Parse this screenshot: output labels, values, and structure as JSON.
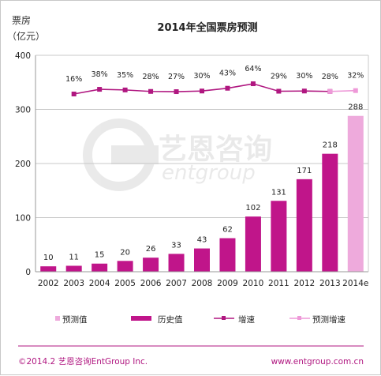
{
  "chart_data": {
    "type": "bar",
    "title": "2014年全国票房预测",
    "ylabel_line1": "票房",
    "ylabel_line2": "（亿元）",
    "ylim": [
      0,
      400
    ],
    "yticks": [
      0,
      100,
      200,
      300,
      400
    ],
    "grid": true,
    "legend_position": "bottom",
    "categories": [
      "2002",
      "2003",
      "2004",
      "2005",
      "2006",
      "2007",
      "2008",
      "2009",
      "2010",
      "2011",
      "2012",
      "2013",
      "2014e"
    ],
    "series": [
      {
        "name": "历史值",
        "type": "bar",
        "color": "#c0158a",
        "values": [
          10,
          11,
          15,
          20,
          26,
          33,
          43,
          62,
          102,
          131,
          171,
          218,
          null
        ]
      },
      {
        "name": "预测值",
        "type": "bar",
        "color": "#eeaadc",
        "values": [
          null,
          null,
          null,
          null,
          null,
          null,
          null,
          null,
          null,
          null,
          null,
          null,
          288
        ]
      },
      {
        "name": "增速",
        "type": "line",
        "color": "#b01780",
        "values": [
          null,
          16,
          38,
          35,
          28,
          27,
          30,
          43,
          64,
          29,
          30,
          28,
          null
        ],
        "labels": [
          null,
          "16%",
          "38%",
          "35%",
          "28%",
          "27%",
          "30%",
          "43%",
          "64%",
          "29%",
          "30%",
          "28%",
          null
        ]
      },
      {
        "name": "预测增速",
        "type": "line",
        "color": "#ee99d8",
        "values": [
          null,
          null,
          null,
          null,
          null,
          null,
          null,
          null,
          null,
          null,
          null,
          28,
          32
        ],
        "labels": [
          null,
          null,
          null,
          null,
          null,
          null,
          null,
          null,
          null,
          null,
          null,
          null,
          "32%"
        ]
      }
    ],
    "legend": [
      "预测值",
      "历史值",
      "增速",
      "预测增速"
    ]
  },
  "watermark": {
    "name": "艺恩咨询",
    "sub": "entgroup"
  },
  "footer": {
    "left": "©2014.2 艺恩咨询EntGroup Inc.",
    "right": "www.entgroup.com.cn"
  }
}
